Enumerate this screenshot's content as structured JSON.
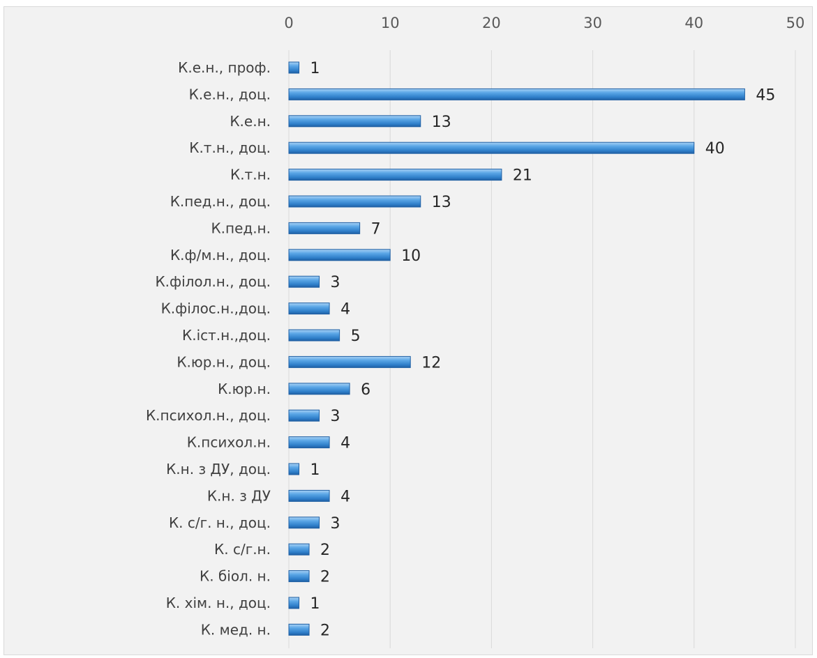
{
  "chart_data": {
    "type": "bar",
    "orientation": "horizontal",
    "title": "",
    "xlabel": "",
    "ylabel": "",
    "xlim": [
      0,
      50
    ],
    "x_ticks": [
      0,
      10,
      20,
      30,
      40,
      50
    ],
    "x_axis_position": "top",
    "grid": true,
    "legend": "none",
    "bar_color": "#3a8fd8",
    "bar_edge_color": "#1f5fa3",
    "categories": [
      "К.е.н., проф.",
      "К.е.н., доц.",
      "К.е.н.",
      "К.т.н., доц.",
      "К.т.н.",
      "К.пед.н., доц.",
      "К.пед.н.",
      "К.ф/м.н., доц.",
      "К.філол.н., доц.",
      "К.філос.н.,доц.",
      "К.іст.н.,доц.",
      "К.юр.н., доц.",
      "К.юр.н.",
      "К.психол.н., доц.",
      "К.психол.н.",
      "К.н. з ДУ, доц.",
      "К.н. з ДУ",
      "К.  с/г. н., доц.",
      "К. с/г.н.",
      "К. біол. н.",
      "К. хім. н., доц.",
      "К. мед. н."
    ],
    "values": [
      1,
      45,
      13,
      40,
      21,
      13,
      7,
      10,
      3,
      4,
      5,
      12,
      6,
      3,
      4,
      1,
      4,
      3,
      2,
      2,
      1,
      2
    ]
  }
}
